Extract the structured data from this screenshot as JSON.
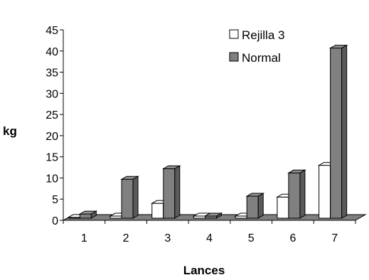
{
  "chart_data": {
    "type": "bar",
    "title": "",
    "xlabel": "Lances",
    "ylabel": "kg",
    "categories": [
      "1",
      "2",
      "3",
      "4",
      "5",
      "6",
      "7"
    ],
    "series": [
      {
        "name": "Rejilla 3",
        "values": [
          0.7,
          1.0,
          4.0,
          1.0,
          1.0,
          5.5,
          13.0
        ],
        "color": "#ffffff"
      },
      {
        "name": "Normal",
        "values": [
          1.5,
          9.7,
          12.2,
          1.0,
          5.7,
          11.2,
          40.7
        ],
        "color": "#808080"
      }
    ],
    "ylim": [
      0,
      45
    ],
    "yticks": [
      0,
      5,
      10,
      15,
      20,
      25,
      30,
      35,
      40,
      45
    ],
    "legend": "top-right",
    "grid": false,
    "style": "3d"
  }
}
